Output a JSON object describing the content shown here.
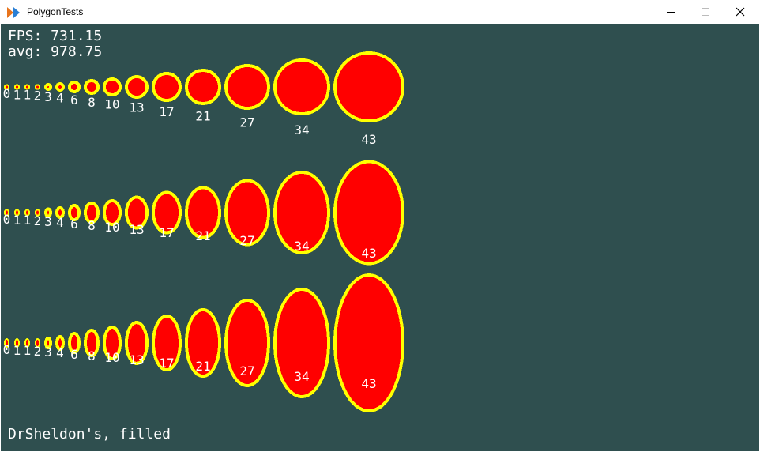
{
  "window": {
    "title": "PolygonTests",
    "icon": "play-arrows-icon",
    "controls": [
      "minimize-icon",
      "maximize-icon",
      "close-icon"
    ]
  },
  "hud": {
    "fps": "FPS: 731.15",
    "avg": "avg: 978.75"
  },
  "caption": "DrSheldon's, filled",
  "colors": {
    "background": "#2f4f4f",
    "fill": "#ff0000",
    "outline": "#ffff00",
    "text": "#ffffff"
  },
  "sizes": [
    0,
    1,
    1,
    2,
    3,
    4,
    6,
    8,
    10,
    13,
    17,
    21,
    27,
    34,
    43
  ],
  "rows": [
    {
      "name": "circles",
      "aspect": 1
    },
    {
      "name": "ellipses-tall",
      "aspect": 1.5
    },
    {
      "name": "ellipses-taller",
      "aspect": 2
    }
  ]
}
